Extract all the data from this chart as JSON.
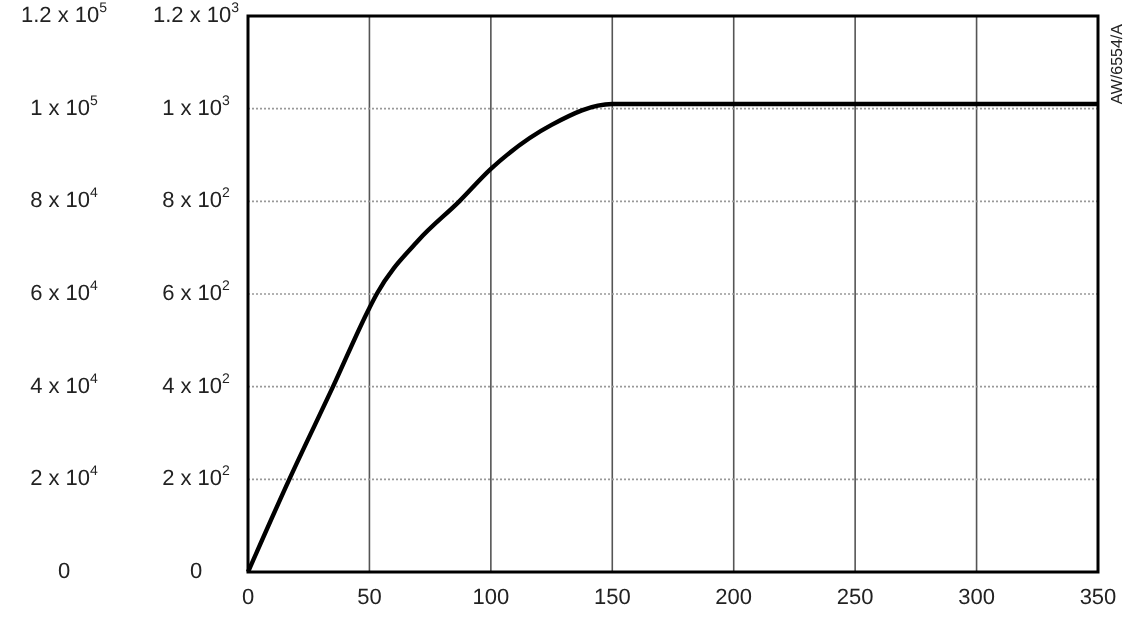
{
  "chart_data": {
    "type": "line",
    "x": [
      0,
      17,
      35,
      50,
      53,
      70,
      87,
      100,
      125,
      150,
      200,
      350
    ],
    "series": [
      {
        "color": "#000000",
        "values": [
          0,
          200,
          400,
          570,
          600,
          715,
          800,
          870,
          965,
          1010,
          1010,
          1010
        ]
      }
    ],
    "xlim": [
      0,
      350
    ],
    "xticks": [
      0,
      50,
      100,
      150,
      200,
      250,
      300,
      350
    ],
    "ylim": [
      0,
      1200
    ],
    "yticks": [
      0,
      {
        "value": 200,
        "label": "2 x 10$^{2}$"
      },
      {
        "value": 400,
        "label": "4 x 10$^{2}$"
      },
      {
        "value": 600,
        "label": "6 x 10$^{2}$"
      },
      {
        "value": 800,
        "label": "8 x 10$^{2}$"
      },
      {
        "value": 1000,
        "label": "1 x 10$^{3}$"
      },
      {
        "value": 1200,
        "label": "1.2 x 10$^{3}$"
      }
    ],
    "y2lim": [
      0,
      120000
    ],
    "y2ticks": [
      0,
      {
        "value": 20000,
        "label": "2 x 10$^{4}$"
      },
      {
        "value": 40000,
        "label": "4 x 10$^{4}$"
      },
      {
        "value": 60000,
        "label": "6 x 10$^{4}$"
      },
      {
        "value": 80000,
        "label": "8 x 10$^{4}$"
      },
      {
        "value": 100000,
        "label": "1 x 10$^{5}$"
      },
      {
        "value": 120000,
        "label": "1.2 x 10$^{5}$"
      }
    ],
    "grid": true,
    "line_style": "solid",
    "annotations": [
      "AW/6554/A"
    ]
  }
}
